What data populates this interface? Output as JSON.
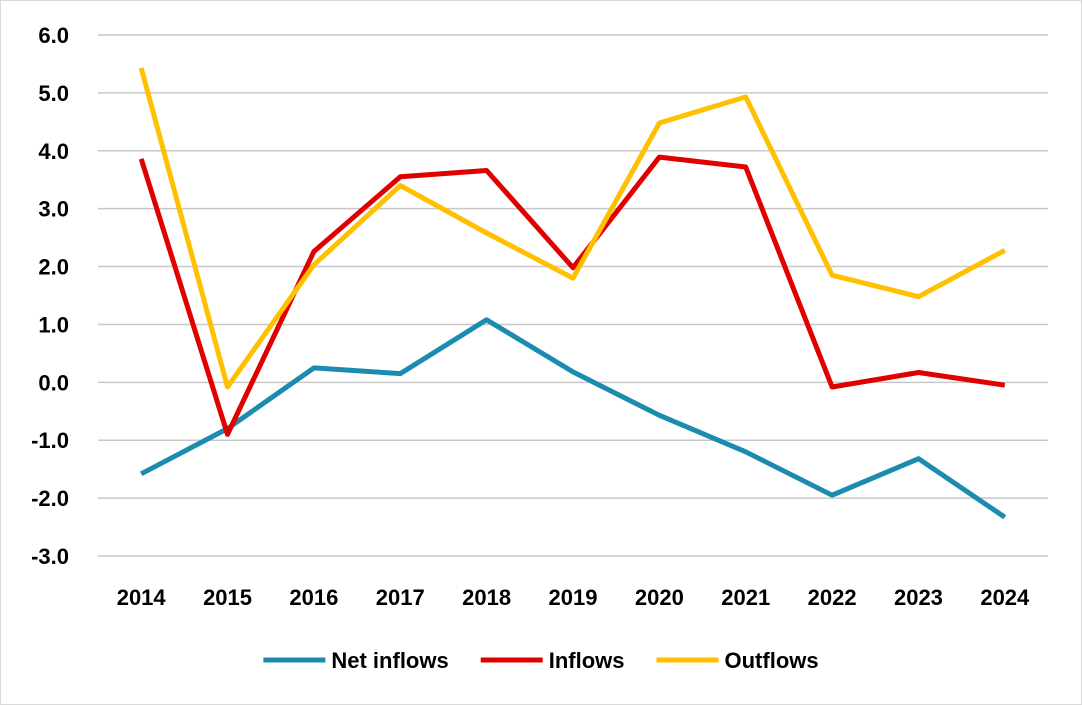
{
  "chart_data": {
    "type": "line",
    "title": "",
    "xlabel": "",
    "ylabel": "",
    "x": [
      "2014",
      "2015",
      "2016",
      "2017",
      "2018",
      "2019",
      "2020",
      "2021",
      "2022",
      "2023",
      "2024"
    ],
    "ylim": [
      -3.0,
      6.0
    ],
    "yticks": [
      "-3.0",
      "-2.0",
      "-1.0",
      "0.0",
      "1.0",
      "2.0",
      "3.0",
      "4.0",
      "5.0",
      "6.0"
    ],
    "grid": true,
    "legend_position": "bottom",
    "series": [
      {
        "name": "Net inflows",
        "color": "#1b8bb0",
        "values": [
          -1.58,
          -0.8,
          0.25,
          0.15,
          1.08,
          0.18,
          -0.57,
          -1.2,
          -1.95,
          -1.32,
          -2.33
        ]
      },
      {
        "name": "Inflows",
        "color": "#e00000",
        "values": [
          3.86,
          -0.9,
          2.26,
          3.55,
          3.66,
          1.98,
          3.89,
          3.72,
          -0.08,
          0.17,
          -0.05
        ]
      },
      {
        "name": "Outflows",
        "color": "#ffc000",
        "values": [
          5.43,
          -0.08,
          2.03,
          3.4,
          2.58,
          1.8,
          4.48,
          4.93,
          1.85,
          1.48,
          2.28
        ]
      }
    ]
  }
}
